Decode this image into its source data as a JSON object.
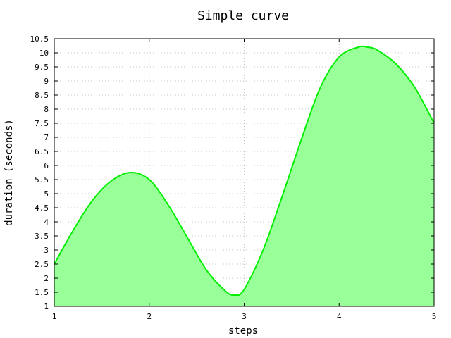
{
  "chart_data": {
    "type": "area",
    "title": "Simple curve",
    "xlabel": "steps",
    "ylabel": "duration (seconds)",
    "xlim": [
      1,
      5
    ],
    "ylim": [
      1,
      10.5
    ],
    "grid": true,
    "x_ticks": [
      "1",
      "2",
      "3",
      "4",
      "5"
    ],
    "y_ticks": [
      "1",
      "1.5",
      "2",
      "2.5",
      "3",
      "3.5",
      "4",
      "4.5",
      "5",
      "5.5",
      "6",
      "6.5",
      "7",
      "7.5",
      "8",
      "8.5",
      "9",
      "9.5",
      "10",
      "10.5"
    ],
    "series": [
      {
        "x": [
          1.0,
          1.2,
          1.4,
          1.6,
          1.8,
          2.0,
          2.2,
          2.4,
          2.6,
          2.8,
          2.9,
          3.0,
          3.2,
          3.4,
          3.6,
          3.8,
          4.0,
          4.2,
          4.3,
          4.4,
          4.6,
          4.8,
          5.0
        ],
        "y": [
          2.5,
          3.7,
          4.75,
          5.45,
          5.75,
          5.5,
          4.6,
          3.45,
          2.3,
          1.55,
          1.4,
          1.6,
          3.0,
          4.9,
          6.9,
          8.75,
          9.85,
          10.2,
          10.2,
          10.1,
          9.6,
          8.75,
          7.5
        ],
        "line_color": "#00ee00",
        "fill_color": "#99ff99"
      }
    ]
  }
}
